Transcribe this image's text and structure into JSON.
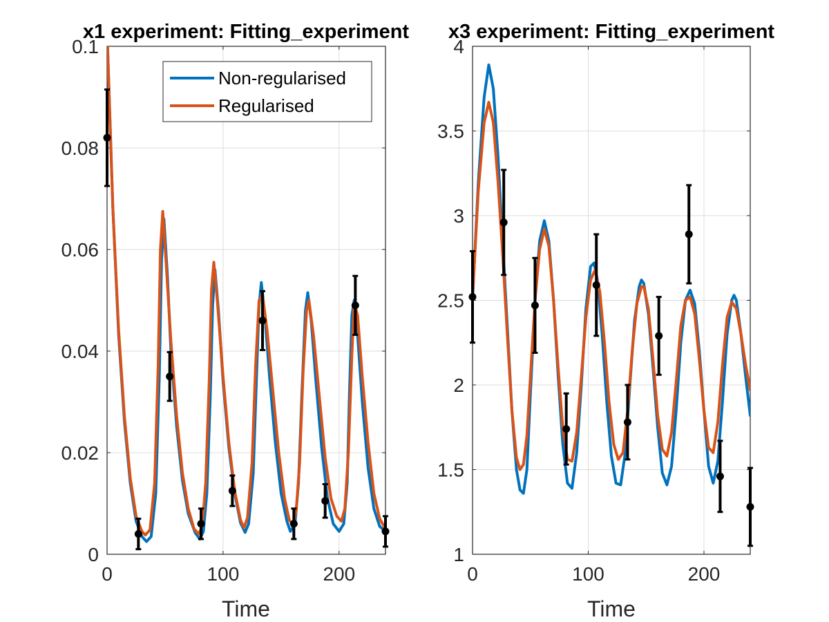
{
  "chart_data": [
    {
      "type": "line",
      "title": "x1 experiment: Fitting_experiment",
      "xlabel": "Time",
      "ylabel": "",
      "xlim": [
        0,
        240
      ],
      "ylim": [
        0,
        0.1
      ],
      "xticks": [
        0,
        100,
        200
      ],
      "yticks": [
        0,
        0.02,
        0.04,
        0.06,
        0.08,
        0.1
      ],
      "xtick_labels": [
        "0",
        "100",
        "200"
      ],
      "ytick_labels": [
        "0",
        "0.02",
        "0.04",
        "0.06",
        "0.08",
        "0.1"
      ],
      "grid": true,
      "legend": {
        "position": "top-right",
        "entries": [
          "Non-regularised",
          "Regularised"
        ]
      },
      "series": [
        {
          "name": "Non-regularised",
          "color": "#0072BD",
          "x": [
            0,
            5,
            10,
            15,
            20,
            25,
            30,
            34,
            38,
            42,
            45,
            47,
            49,
            52,
            55,
            60,
            65,
            70,
            76,
            80,
            83,
            86,
            89,
            91,
            93,
            96,
            100,
            105,
            110,
            115,
            119,
            122,
            126,
            129,
            131,
            133,
            136,
            140,
            145,
            150,
            155,
            158,
            162,
            165,
            168,
            171,
            173,
            176,
            180,
            185,
            190,
            195,
            200,
            204,
            207,
            209,
            211,
            213,
            216,
            220,
            225,
            230,
            235,
            240
          ],
          "y": [
            0.103,
            0.068,
            0.043,
            0.026,
            0.014,
            0.0065,
            0.0035,
            0.0025,
            0.0035,
            0.012,
            0.035,
            0.058,
            0.066,
            0.055,
            0.04,
            0.025,
            0.0145,
            0.008,
            0.0042,
            0.003,
            0.0045,
            0.012,
            0.031,
            0.049,
            0.056,
            0.048,
            0.034,
            0.021,
            0.012,
            0.0062,
            0.0043,
            0.006,
            0.016,
            0.036,
            0.049,
            0.0535,
            0.047,
            0.035,
            0.022,
            0.012,
            0.0065,
            0.0045,
            0.006,
            0.014,
            0.032,
            0.048,
            0.0515,
            0.046,
            0.034,
            0.021,
            0.011,
            0.006,
            0.0045,
            0.006,
            0.014,
            0.032,
            0.047,
            0.05,
            0.043,
            0.03,
            0.017,
            0.009,
            0.0055,
            0.0045
          ]
        },
        {
          "name": "Regularised",
          "color": "#D95319",
          "x": [
            0,
            5,
            10,
            15,
            20,
            25,
            30,
            33,
            37,
            41,
            44,
            46,
            48,
            51,
            55,
            60,
            65,
            70,
            75,
            79,
            82,
            85,
            88,
            90,
            92,
            95,
            100,
            105,
            110,
            115,
            118,
            121,
            125,
            128,
            131,
            134,
            138,
            143,
            148,
            153,
            157,
            160,
            163,
            166,
            169,
            172,
            174,
            178,
            183,
            188,
            193,
            198,
            202,
            205,
            208,
            211,
            213,
            216,
            220,
            225,
            230,
            235,
            240
          ],
          "y": [
            0.103,
            0.068,
            0.044,
            0.027,
            0.015,
            0.0075,
            0.0045,
            0.0038,
            0.0048,
            0.014,
            0.037,
            0.06,
            0.0675,
            0.057,
            0.042,
            0.027,
            0.016,
            0.009,
            0.005,
            0.004,
            0.0055,
            0.014,
            0.034,
            0.052,
            0.0575,
            0.05,
            0.035,
            0.022,
            0.0125,
            0.0068,
            0.0052,
            0.0072,
            0.018,
            0.037,
            0.05,
            0.051,
            0.044,
            0.032,
            0.02,
            0.011,
            0.0068,
            0.0058,
            0.0085,
            0.018,
            0.036,
            0.048,
            0.05,
            0.043,
            0.031,
            0.019,
            0.011,
            0.0075,
            0.0065,
            0.009,
            0.02,
            0.039,
            0.0495,
            0.047,
            0.035,
            0.022,
            0.012,
            0.007,
            0.005
          ]
        }
      ],
      "data_points": {
        "color": "#000000",
        "x": [
          0,
          27,
          54,
          81,
          108,
          134,
          161,
          188,
          214,
          241
        ],
        "y": [
          0.082,
          0.004,
          0.035,
          0.006,
          0.0125,
          0.046,
          0.006,
          0.0105,
          0.049,
          0.0045
        ],
        "error": [
          0.0095,
          0.003,
          0.0048,
          0.003,
          0.003,
          0.0058,
          0.003,
          0.0033,
          0.0058,
          0.003
        ]
      }
    },
    {
      "type": "line",
      "title": "x3 experiment: Fitting_experiment",
      "xlabel": "Time",
      "ylabel": "",
      "xlim": [
        0,
        240
      ],
      "ylim": [
        1,
        4
      ],
      "xticks": [
        0,
        100,
        200
      ],
      "yticks": [
        1,
        1.5,
        2,
        2.5,
        3,
        3.5,
        4
      ],
      "xtick_labels": [
        "0",
        "100",
        "200"
      ],
      "ytick_labels": [
        "1",
        "1.5",
        "2",
        "2.5",
        "3",
        "3.5",
        "4"
      ],
      "grid": true,
      "series": [
        {
          "name": "Non-regularised",
          "color": "#0072BD",
          "x": [
            0,
            5,
            10,
            14,
            18,
            22,
            26,
            30,
            34,
            38,
            41,
            44,
            47,
            50,
            54,
            58,
            62,
            66,
            70,
            74,
            78,
            82,
            86,
            90,
            94,
            98,
            102,
            105,
            108,
            112,
            116,
            120,
            124,
            128,
            132,
            136,
            140,
            144,
            146,
            148,
            152,
            156,
            160,
            164,
            168,
            172,
            176,
            180,
            184,
            188,
            192,
            196,
            200,
            204,
            208,
            212,
            216,
            220,
            224,
            226,
            228,
            232,
            236,
            240
          ],
          "y": [
            2.5,
            3.2,
            3.7,
            3.89,
            3.75,
            3.35,
            2.85,
            2.35,
            1.85,
            1.5,
            1.38,
            1.36,
            1.5,
            1.95,
            2.5,
            2.85,
            2.97,
            2.85,
            2.5,
            2.05,
            1.65,
            1.42,
            1.39,
            1.6,
            2.0,
            2.45,
            2.7,
            2.72,
            2.62,
            2.3,
            1.9,
            1.58,
            1.42,
            1.41,
            1.6,
            2.0,
            2.38,
            2.58,
            2.62,
            2.6,
            2.42,
            2.1,
            1.75,
            1.48,
            1.41,
            1.52,
            1.85,
            2.25,
            2.5,
            2.56,
            2.48,
            2.2,
            1.85,
            1.52,
            1.42,
            1.55,
            1.9,
            2.3,
            2.5,
            2.53,
            2.5,
            2.3,
            2.05,
            1.82
          ]
        },
        {
          "name": "Regularised",
          "color": "#D95319",
          "x": [
            0,
            5,
            10,
            14,
            18,
            22,
            26,
            30,
            34,
            38,
            41,
            44,
            47,
            50,
            54,
            58,
            62,
            66,
            70,
            74,
            78,
            82,
            86,
            90,
            94,
            98,
            102,
            106,
            110,
            114,
            118,
            122,
            126,
            130,
            134,
            138,
            142,
            146,
            148,
            152,
            156,
            160,
            164,
            168,
            172,
            176,
            180,
            184,
            188,
            192,
            196,
            200,
            204,
            208,
            212,
            216,
            220,
            224,
            228,
            232,
            236,
            240
          ],
          "y": [
            2.52,
            3.15,
            3.55,
            3.67,
            3.55,
            3.2,
            2.78,
            2.3,
            1.85,
            1.57,
            1.5,
            1.53,
            1.7,
            2.05,
            2.5,
            2.8,
            2.92,
            2.82,
            2.5,
            2.1,
            1.75,
            1.56,
            1.55,
            1.72,
            2.05,
            2.4,
            2.62,
            2.68,
            2.55,
            2.25,
            1.9,
            1.65,
            1.56,
            1.6,
            1.85,
            2.2,
            2.48,
            2.58,
            2.58,
            2.45,
            2.15,
            1.82,
            1.62,
            1.58,
            1.72,
            2.02,
            2.35,
            2.5,
            2.52,
            2.42,
            2.15,
            1.85,
            1.63,
            1.6,
            1.78,
            2.12,
            2.4,
            2.49,
            2.45,
            2.3,
            2.12,
            1.97
          ]
        }
      ],
      "data_points": {
        "color": "#000000",
        "x": [
          0,
          27,
          54,
          81,
          107,
          134,
          161,
          187,
          214,
          240
        ],
        "y": [
          2.52,
          2.96,
          2.47,
          1.74,
          2.59,
          1.78,
          2.29,
          2.89,
          1.46,
          1.28
        ],
        "error": [
          0.27,
          0.31,
          0.28,
          0.21,
          0.3,
          0.22,
          0.23,
          0.29,
          0.21,
          0.23
        ]
      }
    }
  ]
}
